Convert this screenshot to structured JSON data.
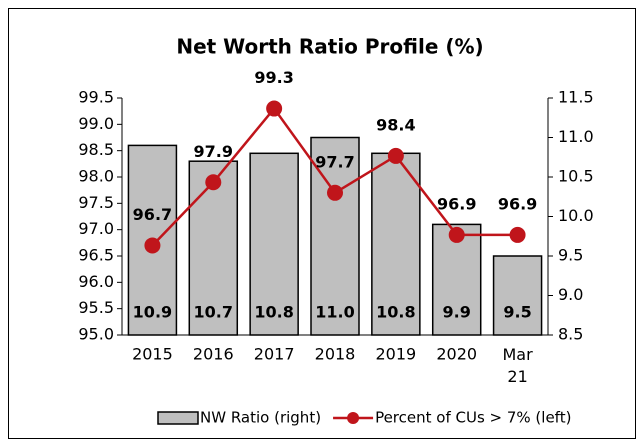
{
  "chart_data": {
    "type": "bar-line",
    "title": "Net Worth Ratio Profile (%)",
    "categories": [
      "2015",
      "2016",
      "2017",
      "2018",
      "2019",
      "2020",
      "Mar 21"
    ],
    "series": [
      {
        "name": "NW Ratio (right)",
        "type": "bar",
        "axis": "y2",
        "color": "#bfbfbf",
        "values": [
          10.9,
          10.7,
          10.8,
          11.0,
          10.8,
          9.9,
          9.5
        ],
        "value_labels": [
          "10.9",
          "10.7",
          "10.8",
          "11.0",
          "10.8",
          "9.9",
          "9.5"
        ]
      },
      {
        "name": "Percent of CUs > 7% (left)",
        "type": "line",
        "axis": "y",
        "color": "#c0151b",
        "values": [
          96.7,
          97.9,
          99.3,
          97.7,
          98.4,
          96.9,
          96.9
        ]
      }
    ],
    "ylim": [
      95.0,
      99.5
    ],
    "yticks": [
      {
        "value": 95,
        "label": "95.0"
      },
      95.5,
      {
        "value": 96,
        "label": "96.0"
      },
      96.5,
      {
        "value": 97,
        "label": "97.0"
      },
      97.5,
      {
        "value": 98,
        "label": "98.0"
      },
      98.5,
      {
        "value": 99,
        "label": "99.0"
      },
      99.5
    ],
    "y2lim": [
      8.5,
      11.5
    ],
    "y2ticks": [
      8.5,
      {
        "value": 9,
        "label": "9.0"
      },
      9.5,
      {
        "value": 10,
        "label": "10.0"
      },
      10.5,
      {
        "value": 11,
        "label": "11.0"
      },
      11.5
    ],
    "legend": "bottom"
  }
}
